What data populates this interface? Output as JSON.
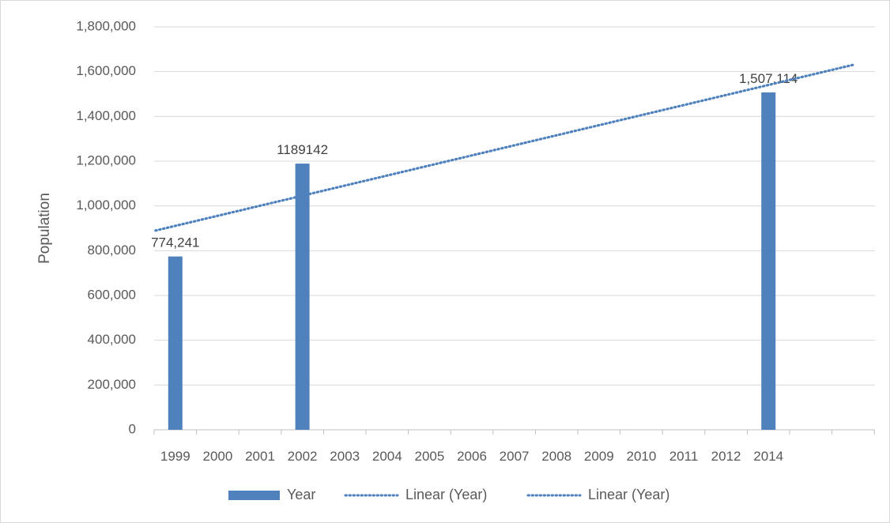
{
  "chart_data": {
    "type": "bar",
    "title": "",
    "xlabel": "",
    "ylabel": "Population",
    "ylim": [
      0,
      1800000
    ],
    "y_ticks": [
      "0",
      "200,000",
      "400,000",
      "600,000",
      "800,000",
      "1,000,000",
      "1,200,000",
      "1,400,000",
      "1,600,000",
      "1,800,000"
    ],
    "categories": [
      "1999",
      "2000",
      "2001",
      "2002",
      "2003",
      "2004",
      "2005",
      "2006",
      "2007",
      "2008",
      "2009",
      "2010",
      "2011",
      "2012",
      "2014"
    ],
    "series": [
      {
        "name": "Year",
        "color": "#4f81bd",
        "values": [
          774241,
          null,
          null,
          1189142,
          null,
          null,
          null,
          null,
          null,
          null,
          null,
          null,
          null,
          null,
          1507114
        ],
        "data_labels": [
          "774,241",
          "",
          "",
          "1189142",
          "",
          "",
          "",
          "",
          "",
          "",
          "",
          "",
          "",
          "",
          "1,507,114"
        ]
      }
    ],
    "trendlines": [
      {
        "name": "Linear (Year)",
        "type": "linear",
        "style": "dotted",
        "color": "#4f81bd",
        "start": 890000,
        "end": 1630000
      },
      {
        "name": "Linear (Year)",
        "type": "linear",
        "style": "dotted",
        "color": "#4f81bd",
        "start": 890000,
        "end": 1630000
      }
    ],
    "grid": true,
    "legend_position": "bottom"
  }
}
